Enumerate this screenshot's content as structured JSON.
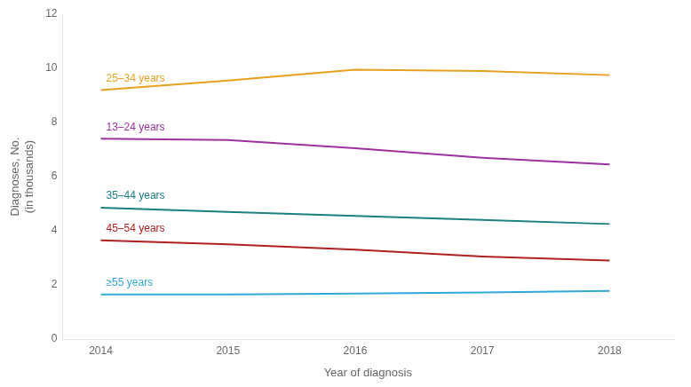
{
  "chart_data": {
    "type": "line",
    "x": [
      2014,
      2015,
      2016,
      2017,
      2018
    ],
    "series": [
      {
        "name": "25–34 years",
        "color": "#E8A020",
        "values": [
          9.2,
          9.55,
          9.95,
          9.9,
          9.75
        ]
      },
      {
        "name": "13–24 years",
        "color": "#9B30A0",
        "values": [
          7.4,
          7.35,
          7.05,
          6.7,
          6.45
        ]
      },
      {
        "name": "35–44 years",
        "color": "#1A8080",
        "values": [
          4.85,
          4.7,
          4.55,
          4.4,
          4.25
        ]
      },
      {
        "name": "45–54 years",
        "color": "#B02020",
        "values": [
          3.65,
          3.5,
          3.3,
          3.05,
          2.9
        ]
      },
      {
        "name": "≥55 years",
        "color": "#30A8D8",
        "values": [
          1.65,
          1.65,
          1.68,
          1.72,
          1.78
        ]
      }
    ],
    "xlim": [
      2013.7,
      2018.5
    ],
    "ylim": [
      0,
      12
    ],
    "xticks": [
      2014,
      2015,
      2016,
      2017,
      2018
    ],
    "yticks": [
      0,
      2,
      4,
      6,
      8,
      10,
      12
    ],
    "xlabel": "Year of diagnosis",
    "ylabel": "Diagnoses, No.\n(in thousands)",
    "grid": false
  }
}
